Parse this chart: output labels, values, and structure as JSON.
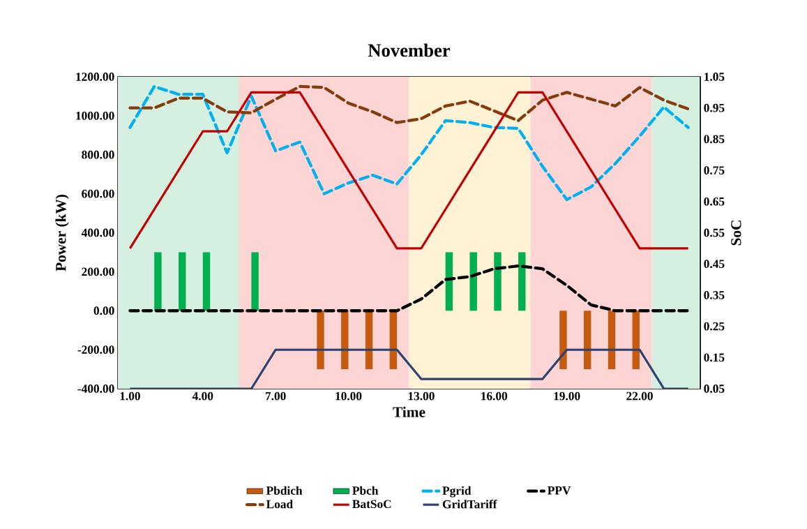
{
  "chart_data": {
    "type": "line",
    "title": "November",
    "xlabel": "Time",
    "ylabel": "Power (kW)",
    "y2label": "SoC",
    "x": [
      1,
      2,
      3,
      4,
      5,
      6,
      7,
      8,
      9,
      10,
      11,
      12,
      13,
      14,
      15,
      16,
      17,
      18,
      19,
      20,
      21,
      22,
      23,
      24
    ],
    "xlim": [
      0.5,
      24.5
    ],
    "xticks": [
      {
        "value": 1,
        "label": "1.00"
      },
      {
        "value": 4,
        "label": "4.00"
      },
      {
        "value": 7,
        "label": "7.00"
      },
      {
        "value": 10,
        "label": "10.00"
      },
      {
        "value": 13,
        "label": "13.00"
      },
      {
        "value": 16,
        "label": "16.00"
      },
      {
        "value": 19,
        "label": "19.00"
      },
      {
        "value": 22,
        "label": "22.00"
      }
    ],
    "ylim": [
      -400,
      1200
    ],
    "yticks": [
      {
        "value": -400,
        "label": "-400.00"
      },
      {
        "value": -200,
        "label": "-200.00"
      },
      {
        "value": 0,
        "label": "0.00"
      },
      {
        "value": 200,
        "label": "200.00"
      },
      {
        "value": 400,
        "label": "400.00"
      },
      {
        "value": 600,
        "label": "600.00"
      },
      {
        "value": 800,
        "label": "800.00"
      },
      {
        "value": 1000,
        "label": "1000.00"
      },
      {
        "value": 1200,
        "label": "1200.00"
      }
    ],
    "y2lim": [
      0.05,
      1.05
    ],
    "y2ticks": [
      0.05,
      0.15,
      0.25,
      0.35,
      0.45,
      0.55,
      0.65,
      0.75,
      0.85,
      0.95,
      1.05
    ],
    "legend": "bottom",
    "grid": false,
    "marker": "none",
    "bands": [
      {
        "axis": "x",
        "from": 0.5,
        "to": 5.5,
        "color": "#d5efe0"
      },
      {
        "axis": "x",
        "from": 5.5,
        "to": 12.5,
        "color": "#fdd5d5"
      },
      {
        "axis": "x",
        "from": 12.5,
        "to": 17.5,
        "color": "#fff2d5"
      },
      {
        "axis": "x",
        "from": 17.5,
        "to": 22.5,
        "color": "#fdd5d5"
      },
      {
        "axis": "x",
        "from": 22.5,
        "to": 24.5,
        "color": "#d5efe0"
      }
    ],
    "series": [
      {
        "name": "Pbdich",
        "type": "bar",
        "color": "#c55a11",
        "values": [
          0,
          0,
          0,
          0,
          0,
          0,
          0,
          0,
          -300,
          -300,
          -300,
          -300,
          0,
          0,
          0,
          0,
          0,
          0,
          -300,
          -300,
          -300,
          -300,
          0,
          0
        ]
      },
      {
        "name": "Pbch",
        "type": "bar",
        "color": "#00b050",
        "values": [
          0,
          300,
          300,
          300,
          0,
          300,
          0,
          0,
          0,
          0,
          0,
          0,
          0,
          300,
          300,
          300,
          300,
          0,
          0,
          0,
          0,
          0,
          0,
          0
        ]
      },
      {
        "name": "Pgrid",
        "color": "#00b0f0",
        "line_style": "dashed",
        "values": [
          940,
          1150,
          1110,
          1110,
          810,
          1100,
          820,
          865,
          600,
          655,
          695,
          650,
          800,
          975,
          965,
          940,
          935,
          740,
          570,
          635,
          755,
          895,
          1045,
          940
        ]
      },
      {
        "name": "PPV",
        "color": "#000000",
        "line_style": "dashed",
        "values": [
          0,
          0,
          0,
          0,
          0,
          0,
          0,
          0,
          0,
          0,
          0,
          0,
          60,
          160,
          175,
          215,
          230,
          215,
          130,
          30,
          0,
          0,
          0,
          0
        ]
      },
      {
        "name": "Load",
        "color": "#843c0c",
        "line_style": "dashed",
        "values": [
          1040,
          1040,
          1090,
          1090,
          1020,
          1015,
          1085,
          1150,
          1145,
          1065,
          1020,
          965,
          985,
          1050,
          1075,
          1025,
          975,
          1080,
          1120,
          1085,
          1050,
          1145,
          1080,
          1035
        ]
      },
      {
        "name": "BatSoC",
        "color": "#c00000",
        "line_style": "solid",
        "axis": "y2",
        "values": [
          0.5,
          0.625,
          0.75,
          0.875,
          0.875,
          1.0,
          1.0,
          1.0,
          0.875,
          0.75,
          0.625,
          0.5,
          0.5,
          0.625,
          0.75,
          0.875,
          1.0,
          1.0,
          0.875,
          0.75,
          0.625,
          0.5,
          0.5,
          0.5
        ]
      },
      {
        "name": "GridTariff",
        "color": "#2e4272",
        "line_style": "solid",
        "values": [
          -400,
          -400,
          -400,
          -400,
          -400,
          -400,
          -200,
          -200,
          -200,
          -200,
          -200,
          -200,
          -350,
          -350,
          -350,
          -350,
          -350,
          -350,
          -200,
          -200,
          -200,
          -200,
          -400,
          -400
        ]
      }
    ]
  }
}
